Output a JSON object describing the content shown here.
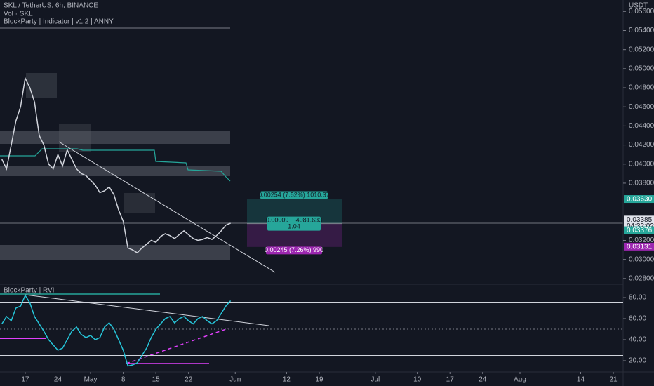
{
  "chart_data": [
    {
      "type": "line",
      "title": "SKL / TetherUS, 6h, BINANCE",
      "indicators": [
        "Vol · SKL",
        "BlockParty | Indicator | v1.2 | ANNY"
      ],
      "y_label": "USDT",
      "color": "#d1d4dc",
      "x": [
        -5,
        -4,
        -3,
        -2,
        -1,
        0,
        1,
        2,
        3,
        4,
        5,
        6,
        7,
        8,
        9,
        10,
        11,
        12,
        13,
        14,
        15,
        16,
        17,
        18,
        19,
        20,
        21,
        22,
        23,
        24,
        25,
        26,
        27,
        28,
        29,
        30,
        31,
        32,
        33,
        34,
        35,
        36,
        37,
        38,
        39,
        40,
        41,
        42,
        43,
        44
      ],
      "values": [
        0.0405,
        0.0395,
        0.042,
        0.0445,
        0.046,
        0.049,
        0.048,
        0.0465,
        0.043,
        0.042,
        0.04,
        0.0395,
        0.041,
        0.0398,
        0.0415,
        0.0405,
        0.0395,
        0.039,
        0.0388,
        0.0383,
        0.0378,
        0.037,
        0.0372,
        0.0376,
        0.0368,
        0.0352,
        0.034,
        0.0312,
        0.031,
        0.0307,
        0.0312,
        0.0316,
        0.032,
        0.0318,
        0.0324,
        0.0327,
        0.0325,
        0.0322,
        0.0326,
        0.033,
        0.0326,
        0.0322,
        0.032,
        0.0321,
        0.0323,
        0.0321,
        0.0325,
        0.033,
        0.0336,
        0.0338
      ],
      "xlim": [
        -5.4,
        128.1
      ],
      "xticks": [
        {
          "value": 0,
          "label": "17"
        },
        {
          "value": 7,
          "label": "24"
        },
        {
          "value": 14,
          "label": "May"
        },
        {
          "value": 21,
          "label": "8"
        },
        {
          "value": 28,
          "label": "15"
        },
        {
          "value": 35,
          "label": "22"
        },
        {
          "value": 45,
          "label": "Jun"
        },
        {
          "value": 56,
          "label": "12"
        },
        {
          "value": 63,
          "label": "19"
        },
        {
          "value": 75,
          "label": "Jul"
        },
        {
          "value": 84,
          "label": "10"
        },
        {
          "value": 91,
          "label": "17"
        },
        {
          "value": 98,
          "label": "24"
        },
        {
          "value": 106,
          "label": "Aug"
        },
        {
          "value": 119,
          "label": "14"
        },
        {
          "value": 126,
          "label": "21"
        }
      ],
      "ylim": [
        0.0274,
        0.0572
      ],
      "yticks": [
        {
          "value": 0.056,
          "label": "0.05600"
        },
        {
          "value": 0.054,
          "label": "0.05400"
        },
        {
          "value": 0.052,
          "label": "0.05200"
        },
        {
          "value": 0.05,
          "label": "0.05000"
        },
        {
          "value": 0.048,
          "label": "0.04800"
        },
        {
          "value": 0.046,
          "label": "0.04600"
        },
        {
          "value": 0.044,
          "label": "0.04400"
        },
        {
          "value": 0.042,
          "label": "0.04200"
        },
        {
          "value": 0.04,
          "label": "0.04000"
        },
        {
          "value": 0.038,
          "label": "0.03800"
        },
        {
          "value": 0.032,
          "label": "0.03200"
        },
        {
          "value": 0.03,
          "label": "0.03000"
        },
        {
          "value": 0.028,
          "label": "0.02800"
        }
      ],
      "price_labels": [
        {
          "value": 0.0363,
          "label": "0.03630",
          "color": "#26a69a"
        },
        {
          "value": 0.03385,
          "label": "0.03385",
          "color": "#e0e3eb"
        },
        {
          "value": 0.03376,
          "label": "0.03376",
          "color": "#26a69a"
        },
        {
          "value": 0.03131,
          "label": "0.03131",
          "color": "#9c27b0"
        }
      ],
      "countdown": "04:32:02",
      "position": {
        "target_label": "0.00254 (7.52%) 1010.37",
        "entry_label": "0.00009 − 4081.633",
        "ratio_label": "1.04",
        "stop_label": "0.00245 (7.26%) 990"
      }
    },
    {
      "type": "line",
      "title": "BlockParty | RVI",
      "color": "#26c6da",
      "x": [
        -5,
        -4,
        -3,
        -2,
        -1,
        0,
        1,
        2,
        3,
        4,
        5,
        6,
        7,
        8,
        9,
        10,
        11,
        12,
        13,
        14,
        15,
        16,
        17,
        18,
        19,
        20,
        21,
        22,
        23,
        24,
        25,
        26,
        27,
        28,
        29,
        30,
        31,
        32,
        33,
        34,
        35,
        36,
        37,
        38,
        39,
        40,
        41,
        42,
        43,
        44
      ],
      "values": [
        55,
        62,
        58,
        70,
        72,
        82,
        75,
        62,
        55,
        48,
        40,
        35,
        30,
        32,
        40,
        48,
        52,
        45,
        42,
        44,
        40,
        42,
        52,
        56,
        50,
        40,
        30,
        15,
        16,
        18,
        25,
        32,
        42,
        50,
        55,
        60,
        62,
        56,
        60,
        62,
        58,
        55,
        60,
        62,
        58,
        55,
        58,
        65,
        72,
        77
      ],
      "ylim": [
        9.3,
        92.7
      ],
      "yticks": [
        {
          "value": 80,
          "label": "80.00"
        },
        {
          "value": 60,
          "label": "60.00"
        },
        {
          "value": 40,
          "label": "40.00"
        },
        {
          "value": 20,
          "label": "20.00"
        }
      ],
      "levels": [
        75,
        50,
        25
      ]
    }
  ]
}
